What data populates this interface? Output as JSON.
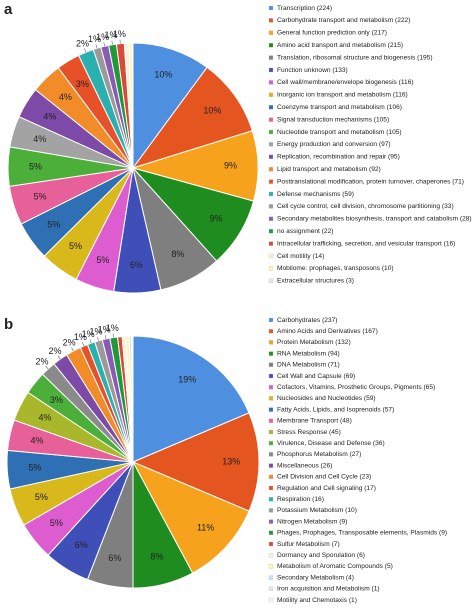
{
  "chart_data": [
    {
      "type": "pie",
      "panel_label": "a",
      "categories": [
        "Transcription (224)",
        "Carbohydrate transport and metabolism (222)",
        "General function prediction only (217)",
        "Amino acid transport and metabolism (215)",
        "Translation, ribosomal structure and biogenesis (195)",
        "Function unknown (133)",
        "Cell wall/membrane/envelope biogenesis (116)",
        "Inorganic ion transport and metabolism (116)",
        "Coenzyme transport and metabolism (106)",
        "Signal transduction mechanisms (105)",
        "Nucleotide transport and metabolism (105)",
        "Energy production and conversion (97)",
        "Replication, recombination and repair (95)",
        "Lipid transport and metabolism (92)",
        "Posttranslational modification, protein turnover, chaperones (71)",
        "Defense mechanisms (59)",
        "Cell cycle control, cell division, chromosome partitioning (33)",
        "Secondary metabolites biosynthesis, transport and catabolism (28)",
        "no assignment (22)",
        "Intracellular trafficking, secretion, and vesicular transport (16)",
        "Cell motility (14)",
        "Mobilome: prophages, transposons (10)",
        "Extracellular structures (3)"
      ],
      "values": [
        10,
        10,
        9,
        9,
        8,
        6,
        5,
        5,
        5,
        5,
        5,
        4,
        4,
        4,
        3,
        2,
        1,
        1,
        1,
        1,
        0.6,
        0.4,
        0.1
      ],
      "value_labels": [
        "10%",
        "10%",
        "9%",
        "9%",
        "8%",
        "6%",
        "5%",
        "5%",
        "5%",
        "5%",
        "5%",
        "4%",
        "4%",
        "4%",
        "3%",
        "2%",
        "1%",
        "1%",
        "1%",
        "1%",
        null,
        null,
        null
      ],
      "colors": [
        "#4f8fe0",
        "#e4551f",
        "#f6a21c",
        "#1e8c1e",
        "#7f7f7f",
        "#3f4fb8",
        "#dd5cd0",
        "#d8b81a",
        "#2f6fb3",
        "#e8609a",
        "#4caf3a",
        "#a3a3a3",
        "#7e4aa8",
        "#f28c28",
        "#e8502a",
        "#2bb0b0",
        "#9a9a9a",
        "#8a5bb5",
        "#1f9a3a",
        "#d94a3a",
        "#f3f3d8",
        "#fff3b0",
        "#e6e6e6"
      ]
    },
    {
      "type": "pie",
      "panel_label": "b",
      "categories": [
        "Carbohydrates (237)",
        "Amino Acids and Derivatives (167)",
        "Protein Metabolism (132)",
        "RNA Metabolism (94)",
        "DNA Metabolism (71)",
        "Cell Wall and Capsule (69)",
        "Cofactors, Vitamins, Prosthetic Groups, Pigments (65)",
        "Nucleosides and Nucleotides (59)",
        "Fatty Acids, Lipids, and Isoprenoids (57)",
        "Membrane Transport (48)",
        "Stress Response (45)",
        "Virulence, Disease and Defense (36)",
        "Phosphorus Metabolism (27)",
        "Miscellaneous (26)",
        "Cell Division and Cell Cycle (23)",
        "Regulation and Cell signaling (17)",
        "Respiration (16)",
        "Potassium Metabolism (10)",
        "Nitrogen Metabolism (9)",
        "Phages, Prophages, Transposable elements, Plasmids (9)",
        "Sulfur Metabolism (7)",
        "Dormancy and Sporulation (6)",
        "Metabolism of Aromatic Compounds (5)",
        "Secondary Metabolism (4)",
        "Iron acquisition and Metabolism (1)",
        "Motility and Chemotaxis (1)"
      ],
      "values": [
        19,
        13,
        11,
        8,
        6,
        6,
        5,
        5,
        5,
        4,
        4,
        3,
        2,
        2,
        2,
        1,
        1,
        1,
        1,
        1,
        0.6,
        0.5,
        0.4,
        0.3,
        0.1,
        0.1
      ],
      "value_labels": [
        "19%",
        "13%",
        "11%",
        "8%",
        "6%",
        "6%",
        "5%",
        "5%",
        "5%",
        "4%",
        "4%",
        "3%",
        "2%",
        "2%",
        "2%",
        "1%",
        "1%",
        "1%",
        "1%",
        "1%",
        null,
        null,
        null,
        null,
        null,
        null
      ],
      "colors": [
        "#4f8fe0",
        "#e4551f",
        "#f6a21c",
        "#1e8c1e",
        "#7f7f7f",
        "#3f4fb8",
        "#dd5cd0",
        "#d8b81a",
        "#2f6fb3",
        "#e8609a",
        "#a8b82a",
        "#4caf3a",
        "#8a8a8a",
        "#7e4aa8",
        "#f28c28",
        "#e8502a",
        "#2bb0b0",
        "#9a9a9a",
        "#8a5bb5",
        "#1f9a3a",
        "#d94a3a",
        "#f3f3d8",
        "#fff3b0",
        "#d0e0f0",
        "#e6e6e6",
        "#f4f4f4"
      ]
    }
  ]
}
